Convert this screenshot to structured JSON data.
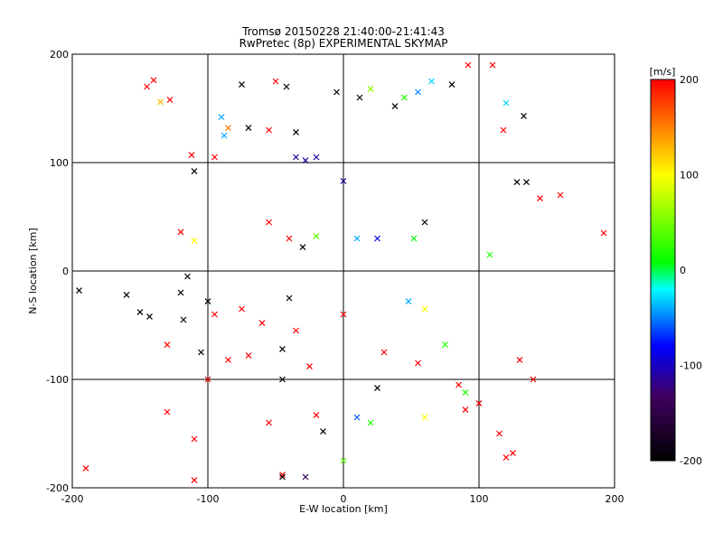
{
  "chart_data": {
    "type": "scatter",
    "title": "Tromsø 20150228 21:40:00-21:41:43",
    "subtitle": "RwPretec (8p) EXPERIMENTAL SKYMAP",
    "xlabel": "E-W location [km]",
    "ylabel": "N-S location [km]",
    "xlim": [
      -200,
      200
    ],
    "ylim": [
      -200,
      200
    ],
    "x_ticks": [
      -200,
      -100,
      0,
      100,
      200
    ],
    "y_ticks": [
      -200,
      -100,
      0,
      100,
      200
    ],
    "grid": true,
    "marker_types": [
      "dot",
      "x"
    ],
    "colorbar": {
      "label": "[m/s]",
      "range": [
        -200,
        200
      ],
      "ticks": [
        200,
        100,
        0,
        -100,
        -200
      ],
      "colormap": [
        "#000000",
        "#400060",
        "#0000ff",
        "#00ffff",
        "#00ff00",
        "#ffff00",
        "#ff0000"
      ]
    },
    "points": [
      {
        "x": -140,
        "y": 176,
        "v": 200,
        "m": "x"
      },
      {
        "x": -135,
        "y": 156,
        "v": 130,
        "m": "x"
      },
      {
        "x": -128,
        "y": 158,
        "v": 200,
        "m": "x"
      },
      {
        "x": -75,
        "y": 172,
        "v": -200,
        "m": "x"
      },
      {
        "x": -50,
        "y": 175,
        "v": 200,
        "m": "x"
      },
      {
        "x": -42,
        "y": 170,
        "v": -200,
        "m": "x"
      },
      {
        "x": -5,
        "y": 165,
        "v": -200,
        "m": "x"
      },
      {
        "x": 12,
        "y": 160,
        "v": -200,
        "m": "x"
      },
      {
        "x": 20,
        "y": 168,
        "v": 60,
        "m": "x"
      },
      {
        "x": 38,
        "y": 152,
        "v": -200,
        "m": "x"
      },
      {
        "x": 45,
        "y": 160,
        "v": 20,
        "m": "x"
      },
      {
        "x": 55,
        "y": 165,
        "v": -50,
        "m": "x"
      },
      {
        "x": 65,
        "y": 175,
        "v": -30,
        "m": "x"
      },
      {
        "x": 80,
        "y": 172,
        "v": -200,
        "m": "x"
      },
      {
        "x": 92,
        "y": 190,
        "v": 200,
        "m": "x"
      },
      {
        "x": 110,
        "y": 190,
        "v": 200,
        "m": "x"
      },
      {
        "x": 120,
        "y": 155,
        "v": -30,
        "m": "x"
      },
      {
        "x": 133,
        "y": 143,
        "v": -200,
        "m": "x"
      },
      {
        "x": 118,
        "y": 130,
        "v": 200,
        "m": "x"
      },
      {
        "x": -90,
        "y": 142,
        "v": -40,
        "m": "x"
      },
      {
        "x": -88,
        "y": 125,
        "v": -40,
        "m": "x"
      },
      {
        "x": -85,
        "y": 132,
        "v": 150,
        "m": "x"
      },
      {
        "x": -70,
        "y": 132,
        "v": -200,
        "m": "x"
      },
      {
        "x": -55,
        "y": 130,
        "v": 200,
        "m": "x"
      },
      {
        "x": -35,
        "y": 128,
        "v": -200,
        "m": "x"
      },
      {
        "x": -112,
        "y": 107,
        "v": 200,
        "m": "x"
      },
      {
        "x": -110,
        "y": 92,
        "v": -200,
        "m": "x"
      },
      {
        "x": -95,
        "y": 105,
        "v": 200,
        "m": "x"
      },
      {
        "x": -35,
        "y": 105,
        "v": -110,
        "m": "x"
      },
      {
        "x": -28,
        "y": 102,
        "v": -110,
        "m": "x"
      },
      {
        "x": -20,
        "y": 105,
        "v": -110,
        "m": "x"
      },
      {
        "x": 0,
        "y": 83,
        "v": -110,
        "m": "x"
      },
      {
        "x": 128,
        "y": 82,
        "v": -200,
        "m": "x"
      },
      {
        "x": 135,
        "y": 82,
        "v": -200,
        "m": "x"
      },
      {
        "x": 145,
        "y": 67,
        "v": 200,
        "m": "x"
      },
      {
        "x": 160,
        "y": 70,
        "v": 200,
        "m": "x"
      },
      {
        "x": -120,
        "y": 36,
        "v": 200,
        "m": "x"
      },
      {
        "x": -110,
        "y": 28,
        "v": 100,
        "m": "x"
      },
      {
        "x": -55,
        "y": 45,
        "v": 200,
        "m": "x"
      },
      {
        "x": -40,
        "y": 30,
        "v": 200,
        "m": "x"
      },
      {
        "x": -30,
        "y": 22,
        "v": -200,
        "m": "x"
      },
      {
        "x": -20,
        "y": 32,
        "v": 40,
        "m": "x"
      },
      {
        "x": 10,
        "y": 30,
        "v": -40,
        "m": "x"
      },
      {
        "x": 25,
        "y": 30,
        "v": -90,
        "m": "x"
      },
      {
        "x": 52,
        "y": 30,
        "v": 10,
        "m": "x"
      },
      {
        "x": 108,
        "y": 15,
        "v": 20,
        "m": "x"
      },
      {
        "x": 192,
        "y": 35,
        "v": 200,
        "m": "x"
      },
      {
        "x": -195,
        "y": -18,
        "v": -200,
        "m": "x"
      },
      {
        "x": -160,
        "y": -22,
        "v": -200,
        "m": "x"
      },
      {
        "x": -150,
        "y": -38,
        "v": -200,
        "m": "x"
      },
      {
        "x": -143,
        "y": -42,
        "v": -200,
        "m": "x"
      },
      {
        "x": -115,
        "y": -5,
        "v": -200,
        "m": "x"
      },
      {
        "x": -120,
        "y": -20,
        "v": -200,
        "m": "x"
      },
      {
        "x": -100,
        "y": -28,
        "v": -200,
        "m": "x"
      },
      {
        "x": -95,
        "y": -40,
        "v": 200,
        "m": "x"
      },
      {
        "x": -118,
        "y": -45,
        "v": -200,
        "m": "x"
      },
      {
        "x": -75,
        "y": -35,
        "v": 200,
        "m": "x"
      },
      {
        "x": -60,
        "y": -48,
        "v": 200,
        "m": "x"
      },
      {
        "x": -40,
        "y": -25,
        "v": -200,
        "m": "x"
      },
      {
        "x": -35,
        "y": -55,
        "v": 200,
        "m": "x"
      },
      {
        "x": 0,
        "y": -40,
        "v": 200,
        "m": "x"
      },
      {
        "x": 48,
        "y": -28,
        "v": -40,
        "m": "x"
      },
      {
        "x": 60,
        "y": -35,
        "v": 100,
        "m": "x"
      },
      {
        "x": -130,
        "y": -68,
        "v": 200,
        "m": "x"
      },
      {
        "x": -105,
        "y": -75,
        "v": -200,
        "m": "x"
      },
      {
        "x": -85,
        "y": -82,
        "v": 200,
        "m": "x"
      },
      {
        "x": -70,
        "y": -78,
        "v": 200,
        "m": "x"
      },
      {
        "x": -45,
        "y": -72,
        "v": -200,
        "m": "x"
      },
      {
        "x": -25,
        "y": -88,
        "v": 200,
        "m": "x"
      },
      {
        "x": 30,
        "y": -75,
        "v": 200,
        "m": "x"
      },
      {
        "x": 55,
        "y": -85,
        "v": 200,
        "m": "x"
      },
      {
        "x": 75,
        "y": -68,
        "v": 20,
        "m": "x"
      },
      {
        "x": 130,
        "y": -82,
        "v": 200,
        "m": "x"
      },
      {
        "x": 140,
        "y": -100,
        "v": 200,
        "m": "x"
      },
      {
        "x": -100,
        "y": -100,
        "v": 200,
        "m": "x"
      },
      {
        "x": -45,
        "y": -100,
        "v": -200,
        "m": "x"
      },
      {
        "x": 25,
        "y": -108,
        "v": -200,
        "m": "x"
      },
      {
        "x": 85,
        "y": -105,
        "v": 200,
        "m": "x"
      },
      {
        "x": 90,
        "y": -112,
        "v": 20,
        "m": "x"
      },
      {
        "x": 100,
        "y": -122,
        "v": 200,
        "m": "x"
      },
      {
        "x": -20,
        "y": -133,
        "v": 200,
        "m": "x"
      },
      {
        "x": -15,
        "y": -148,
        "v": -200,
        "m": "x"
      },
      {
        "x": 10,
        "y": -135,
        "v": -60,
        "m": "x"
      },
      {
        "x": 20,
        "y": -140,
        "v": 20,
        "m": "x"
      },
      {
        "x": 60,
        "y": -135,
        "v": 100,
        "m": "x"
      },
      {
        "x": 90,
        "y": -128,
        "v": 200,
        "m": "x"
      },
      {
        "x": 115,
        "y": -150,
        "v": 200,
        "m": "x"
      },
      {
        "x": -130,
        "y": -130,
        "v": 200,
        "m": "x"
      },
      {
        "x": -110,
        "y": -155,
        "v": 200,
        "m": "x"
      },
      {
        "x": -55,
        "y": -140,
        "v": 200,
        "m": "x"
      },
      {
        "x": 125,
        "y": -168,
        "v": 200,
        "m": "x"
      },
      {
        "x": 120,
        "y": -172,
        "v": 200,
        "m": "x"
      },
      {
        "x": -190,
        "y": -182,
        "v": 200,
        "m": "x"
      },
      {
        "x": -110,
        "y": -193,
        "v": 200,
        "m": "x"
      },
      {
        "x": -45,
        "y": -188,
        "v": 200,
        "m": "x"
      },
      {
        "x": -45,
        "y": -190,
        "v": -200,
        "m": "x"
      },
      {
        "x": -28,
        "y": -190,
        "v": -140,
        "m": "x"
      },
      {
        "x": 0,
        "y": -175,
        "v": 40,
        "m": "x"
      },
      {
        "x": -145,
        "y": 170,
        "v": 200,
        "m": "x"
      },
      {
        "x": 60,
        "y": 45,
        "v": -200,
        "m": "x"
      }
    ]
  }
}
